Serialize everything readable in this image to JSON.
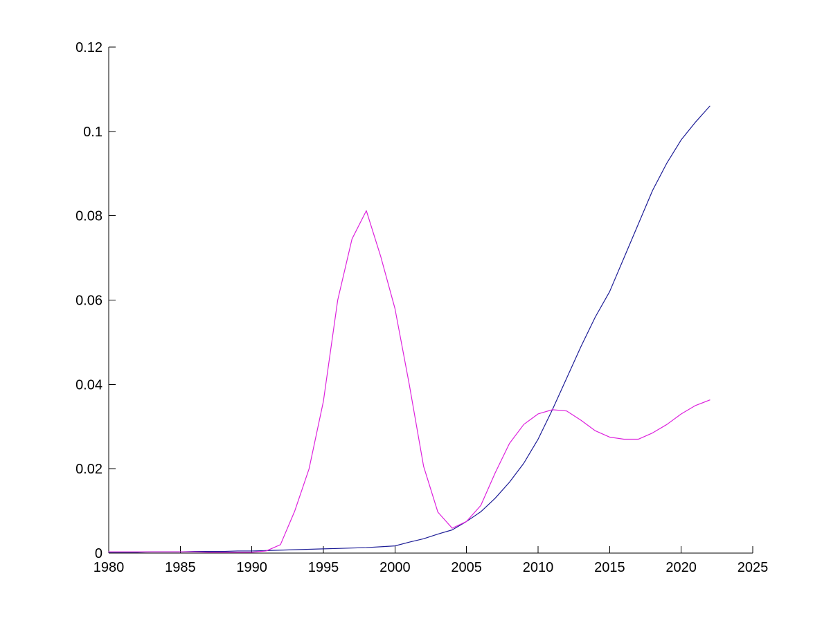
{
  "figure": {
    "background": "#ffffff",
    "axis_color": "#000000",
    "tick_label_color": "#000000"
  },
  "chart_data": {
    "type": "line",
    "title": "",
    "xlabel": "",
    "ylabel": "",
    "grid": false,
    "legend": "none",
    "xlim": [
      1980,
      2025
    ],
    "ylim": [
      0,
      0.12
    ],
    "xticks": [
      1980,
      1985,
      1990,
      1995,
      2000,
      2005,
      2010,
      2015,
      2020,
      2025
    ],
    "xtick_labels": [
      "1980",
      "1985",
      "1990",
      "1995",
      "2000",
      "2005",
      "2010",
      "2015",
      "2020",
      "2025"
    ],
    "yticks": [
      0,
      0.02,
      0.04,
      0.06,
      0.08,
      0.1,
      0.12
    ],
    "ytick_labels": [
      "0",
      "0.02",
      "0.04",
      "0.06",
      "0.08",
      "0.1",
      "0.12"
    ],
    "x": [
      1980,
      1981,
      1982,
      1983,
      1984,
      1985,
      1986,
      1987,
      1988,
      1989,
      1990,
      1991,
      1992,
      1993,
      1994,
      1995,
      1996,
      1997,
      1998,
      1999,
      2000,
      2001,
      2002,
      2003,
      2004,
      2005,
      2006,
      2007,
      2008,
      2009,
      2010,
      2011,
      2012,
      2013,
      2014,
      2015,
      2016,
      2017,
      2018,
      2019,
      2020,
      2021,
      2022
    ],
    "series": [
      {
        "name": "dark-blue-line",
        "color": "#1c1c96",
        "values": [
          0.0002,
          0.0002,
          0.0002,
          0.0003,
          0.0003,
          0.0003,
          0.0004,
          0.0004,
          0.0004,
          0.0005,
          0.0005,
          0.0006,
          0.0007,
          0.0008,
          0.0009,
          0.001,
          0.0011,
          0.0012,
          0.0013,
          0.0015,
          0.0017,
          0.0026,
          0.0034,
          0.0045,
          0.0055,
          0.0075,
          0.0098,
          0.013,
          0.0168,
          0.0213,
          0.027,
          0.034,
          0.0415,
          0.049,
          0.056,
          0.062,
          0.07,
          0.078,
          0.086,
          0.0925,
          0.098,
          0.1022,
          0.106
        ]
      },
      {
        "name": "magenta-line",
        "color": "#dd22dd",
        "values": [
          0.0003,
          0.0003,
          0.0003,
          0.0003,
          0.0003,
          0.0003,
          0.0003,
          0.0002,
          0.0002,
          0.0002,
          0.0002,
          0.0005,
          0.002,
          0.01,
          0.02,
          0.036,
          0.06,
          0.0745,
          0.0812,
          0.0704,
          0.058,
          0.04,
          0.0206,
          0.0097,
          0.0059,
          0.0075,
          0.0113,
          0.019,
          0.026,
          0.0305,
          0.033,
          0.034,
          0.0337,
          0.0315,
          0.029,
          0.0275,
          0.027,
          0.027,
          0.0285,
          0.0305,
          0.033,
          0.035,
          0.0363
        ]
      }
    ]
  }
}
